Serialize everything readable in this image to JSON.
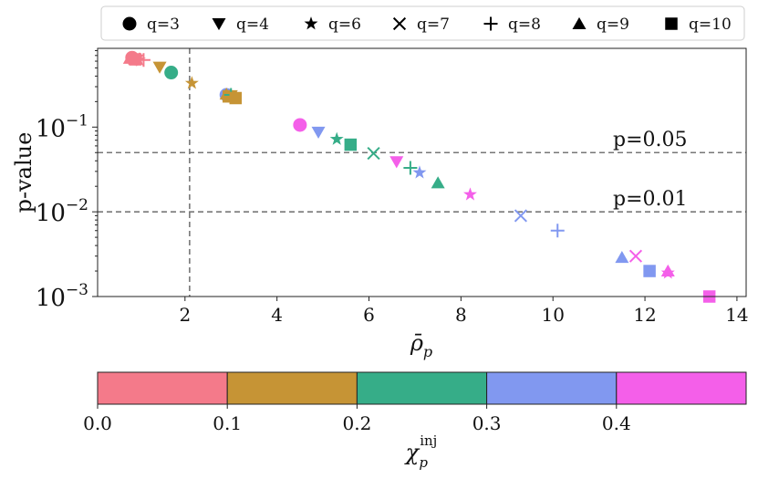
{
  "chart_data": {
    "type": "scatter",
    "title": "",
    "xlabel": "ρ̄",
    "xlabel_sub": "p",
    "ylabel": "p-value",
    "xscale": "linear",
    "yscale": "log",
    "xlim": [
      0.1,
      14.2
    ],
    "ylim": [
      0.001,
      0.85
    ],
    "xticks": [
      2,
      4,
      6,
      8,
      10,
      12,
      14
    ],
    "xtick_labels": [
      "2",
      "4",
      "6",
      "8",
      "10",
      "12",
      "14"
    ],
    "yticks": [
      0.1,
      0.01,
      0.001
    ],
    "ytick_base": "10",
    "ytick_exponents": [
      "−1",
      "−2",
      "−3"
    ],
    "legend": {
      "placement": "top",
      "entries": [
        {
          "marker": "circle",
          "label": "q=3"
        },
        {
          "marker": "triangle-down",
          "label": "q=4"
        },
        {
          "marker": "star",
          "label": "q=6"
        },
        {
          "marker": "x",
          "label": "q=7"
        },
        {
          "marker": "plus",
          "label": "q=8"
        },
        {
          "marker": "triangle-up",
          "label": "q=9"
        },
        {
          "marker": "square",
          "label": "q=10"
        }
      ]
    },
    "reference_lines": [
      {
        "axis": "y",
        "value": 0.05,
        "label": "p=0.05"
      },
      {
        "axis": "y",
        "value": 0.01,
        "label": "p=0.01"
      },
      {
        "axis": "x",
        "value": 2.1,
        "label": ""
      }
    ],
    "colorbar": {
      "label": "χ",
      "label_sub": "p",
      "label_sup": "inj",
      "bins": [
        {
          "from": 0.0,
          "to": 0.1,
          "color": "#f47a8a"
        },
        {
          "from": 0.1,
          "to": 0.2,
          "color": "#c69435"
        },
        {
          "from": 0.2,
          "to": 0.3,
          "color": "#36ad88"
        },
        {
          "from": 0.3,
          "to": 0.4,
          "color": "#8198f0"
        },
        {
          "from": 0.4,
          "to": 0.5,
          "color": "#f45fe9"
        }
      ],
      "range": [
        0.0,
        0.5
      ],
      "ticks": [
        0.0,
        0.1,
        0.2,
        0.3,
        0.4
      ],
      "tick_labels": [
        "0.0",
        "0.1",
        "0.2",
        "0.3",
        "0.4"
      ]
    },
    "points": [
      {
        "q": 3,
        "chi": 0.05,
        "x": 0.85,
        "y": 0.66
      },
      {
        "q": 4,
        "chi": 0.05,
        "x": 0.95,
        "y": 0.62
      },
      {
        "q": 6,
        "chi": 0.05,
        "x": 1.0,
        "y": 0.62
      },
      {
        "q": 7,
        "chi": 0.05,
        "x": 0.9,
        "y": 0.64
      },
      {
        "q": 8,
        "chi": 0.05,
        "x": 1.1,
        "y": 0.62
      },
      {
        "q": 9,
        "chi": 0.05,
        "x": 0.8,
        "y": 0.65
      },
      {
        "q": 10,
        "chi": 0.05,
        "x": 0.92,
        "y": 0.63
      },
      {
        "q": 4,
        "chi": 0.15,
        "x": 1.45,
        "y": 0.51
      },
      {
        "q": 3,
        "chi": 0.25,
        "x": 1.7,
        "y": 0.44
      },
      {
        "q": 6,
        "chi": 0.15,
        "x": 2.15,
        "y": 0.33
      },
      {
        "q": 3,
        "chi": 0.35,
        "x": 2.9,
        "y": 0.24
      },
      {
        "q": 9,
        "chi": 0.15,
        "x": 2.9,
        "y": 0.245
      },
      {
        "q": 10,
        "chi": 0.15,
        "x": 2.95,
        "y": 0.23
      },
      {
        "q": 4,
        "chi": 0.15,
        "x": 3.0,
        "y": 0.235
      },
      {
        "q": 8,
        "chi": 0.25,
        "x": 3.0,
        "y": 0.24
      },
      {
        "q": 10,
        "chi": 0.15,
        "x": 3.1,
        "y": 0.22
      },
      {
        "q": 3,
        "chi": 0.45,
        "x": 4.5,
        "y": 0.106
      },
      {
        "q": 4,
        "chi": 0.35,
        "x": 4.9,
        "y": 0.087
      },
      {
        "q": 6,
        "chi": 0.25,
        "x": 5.3,
        "y": 0.072
      },
      {
        "q": 10,
        "chi": 0.25,
        "x": 5.6,
        "y": 0.062
      },
      {
        "q": 7,
        "chi": 0.25,
        "x": 6.1,
        "y": 0.049
      },
      {
        "q": 4,
        "chi": 0.45,
        "x": 6.6,
        "y": 0.039
      },
      {
        "q": 8,
        "chi": 0.25,
        "x": 6.9,
        "y": 0.033
      },
      {
        "q": 6,
        "chi": 0.35,
        "x": 7.1,
        "y": 0.029
      },
      {
        "q": 9,
        "chi": 0.25,
        "x": 7.5,
        "y": 0.022
      },
      {
        "q": 6,
        "chi": 0.45,
        "x": 8.2,
        "y": 0.016
      },
      {
        "q": 7,
        "chi": 0.35,
        "x": 9.3,
        "y": 0.009
      },
      {
        "q": 8,
        "chi": 0.35,
        "x": 10.1,
        "y": 0.006
      },
      {
        "q": 9,
        "chi": 0.35,
        "x": 11.5,
        "y": 0.0029
      },
      {
        "q": 7,
        "chi": 0.45,
        "x": 11.8,
        "y": 0.003
      },
      {
        "q": 10,
        "chi": 0.35,
        "x": 12.1,
        "y": 0.002
      },
      {
        "q": 9,
        "chi": 0.45,
        "x": 12.5,
        "y": 0.002
      },
      {
        "q": 6,
        "chi": 0.45,
        "x": 12.5,
        "y": 0.0019
      },
      {
        "q": 10,
        "chi": 0.45,
        "x": 13.4,
        "y": 0.001
      }
    ]
  }
}
